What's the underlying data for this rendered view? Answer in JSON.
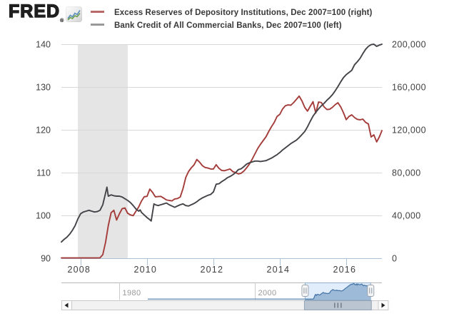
{
  "logo": {
    "text": "FRED",
    "registered": "®",
    "icon": "fred-sparkline-icon"
  },
  "legend": {
    "items": [
      {
        "label": "Excess Reserves of Depository Institutions, Dec 2007=100 (right)",
        "swatch_color": "#b96a66"
      },
      {
        "label": "Bank Credit of All Commercial Banks, Dec 2007=100 (left)",
        "swatch_color": "#999999"
      }
    ]
  },
  "chart_data": {
    "type": "line",
    "title": "",
    "grid": "horizontal",
    "legend_position": "top",
    "x_axis": {
      "range": [
        2007.42,
        2017.075
      ],
      "ticks": [
        2008,
        2010,
        2012,
        2014,
        2016
      ],
      "labels": [
        "2008",
        "2010",
        "2012",
        "2014",
        "2016"
      ],
      "line_color": "#a9c2d9"
    },
    "y_axis_left": {
      "range": [
        90,
        140
      ],
      "ticks": [
        90,
        100,
        110,
        120,
        130,
        140
      ],
      "labels": [
        "90",
        "100",
        "110",
        "120",
        "130",
        "140"
      ]
    },
    "y_axis_right": {
      "range": [
        0,
        200000
      ],
      "ticks": [
        0,
        40000,
        80000,
        120000,
        160000,
        200000
      ],
      "labels": [
        "0",
        "40,000",
        "80,000",
        "120,000",
        "160,000",
        "200,000"
      ]
    },
    "recession_band": {
      "from": 2007.917,
      "to": 2009.417,
      "color": "#e5e5e5"
    },
    "gridline_color": "#d8d8d8",
    "label_color": "#404040",
    "series": [
      {
        "name": "Excess Reserves of Depository Institutions, Dec 2007=100",
        "axis": "right",
        "color": "#a43c3a",
        "points": [
          [
            2007.42,
            300
          ],
          [
            2007.5,
            300
          ],
          [
            2007.583,
            300
          ],
          [
            2007.667,
            300
          ],
          [
            2007.75,
            300
          ],
          [
            2007.833,
            300
          ],
          [
            2007.917,
            300
          ],
          [
            2008.0,
            300
          ],
          [
            2008.083,
            300
          ],
          [
            2008.167,
            300
          ],
          [
            2008.25,
            300
          ],
          [
            2008.333,
            300
          ],
          [
            2008.417,
            300
          ],
          [
            2008.5,
            300
          ],
          [
            2008.583,
            400
          ],
          [
            2008.667,
            3300
          ],
          [
            2008.75,
            14800
          ],
          [
            2008.833,
            30500
          ],
          [
            2008.917,
            42500
          ],
          [
            2009.0,
            44800
          ],
          [
            2009.083,
            35700
          ],
          [
            2009.167,
            41500
          ],
          [
            2009.25,
            46300
          ],
          [
            2009.333,
            47000
          ],
          [
            2009.417,
            42000
          ],
          [
            2009.5,
            40500
          ],
          [
            2009.583,
            39800
          ],
          [
            2009.667,
            44000
          ],
          [
            2009.75,
            48000
          ],
          [
            2009.833,
            53500
          ],
          [
            2009.917,
            57500
          ],
          [
            2010.0,
            57800
          ],
          [
            2010.083,
            64600
          ],
          [
            2010.167,
            61500
          ],
          [
            2010.25,
            57400
          ],
          [
            2010.333,
            57600
          ],
          [
            2010.417,
            57800
          ],
          [
            2010.5,
            56200
          ],
          [
            2010.583,
            54500
          ],
          [
            2010.667,
            54000
          ],
          [
            2010.75,
            53600
          ],
          [
            2010.833,
            55400
          ],
          [
            2010.917,
            55800
          ],
          [
            2011.0,
            57200
          ],
          [
            2011.083,
            65000
          ],
          [
            2011.167,
            75500
          ],
          [
            2011.25,
            81000
          ],
          [
            2011.333,
            84500
          ],
          [
            2011.417,
            87300
          ],
          [
            2011.5,
            92300
          ],
          [
            2011.583,
            89800
          ],
          [
            2011.667,
            86500
          ],
          [
            2011.75,
            84800
          ],
          [
            2011.833,
            84300
          ],
          [
            2011.917,
            83400
          ],
          [
            2012.0,
            83400
          ],
          [
            2012.083,
            87400
          ],
          [
            2012.167,
            84000
          ],
          [
            2012.25,
            82000
          ],
          [
            2012.333,
            81800
          ],
          [
            2012.417,
            82600
          ],
          [
            2012.5,
            83400
          ],
          [
            2012.583,
            81000
          ],
          [
            2012.667,
            80000
          ],
          [
            2012.75,
            78800
          ],
          [
            2012.833,
            79400
          ],
          [
            2012.917,
            81500
          ],
          [
            2013.0,
            84500
          ],
          [
            2013.083,
            88000
          ],
          [
            2013.167,
            92500
          ],
          [
            2013.25,
            97500
          ],
          [
            2013.333,
            102500
          ],
          [
            2013.417,
            106500
          ],
          [
            2013.5,
            110000
          ],
          [
            2013.583,
            113500
          ],
          [
            2013.667,
            118500
          ],
          [
            2013.75,
            123000
          ],
          [
            2013.833,
            127000
          ],
          [
            2013.917,
            132500
          ],
          [
            2014.0,
            134500
          ],
          [
            2014.083,
            139500
          ],
          [
            2014.167,
            142500
          ],
          [
            2014.25,
            143300
          ],
          [
            2014.333,
            143000
          ],
          [
            2014.417,
            145500
          ],
          [
            2014.5,
            148500
          ],
          [
            2014.583,
            151500
          ],
          [
            2014.667,
            147000
          ],
          [
            2014.75,
            141000
          ],
          [
            2014.833,
            137500
          ],
          [
            2014.917,
            142000
          ],
          [
            2015.0,
            146300
          ],
          [
            2015.083,
            135700
          ],
          [
            2015.167,
            146000
          ],
          [
            2015.25,
            145500
          ],
          [
            2015.333,
            141500
          ],
          [
            2015.417,
            139000
          ],
          [
            2015.5,
            139200
          ],
          [
            2015.583,
            141000
          ],
          [
            2015.667,
            143500
          ],
          [
            2015.75,
            145300
          ],
          [
            2015.833,
            141500
          ],
          [
            2015.917,
            136000
          ],
          [
            2016.0,
            129500
          ],
          [
            2016.083,
            132500
          ],
          [
            2016.167,
            134000
          ],
          [
            2016.25,
            131500
          ],
          [
            2016.333,
            129800
          ],
          [
            2016.417,
            129400
          ],
          [
            2016.5,
            130000
          ],
          [
            2016.583,
            127000
          ],
          [
            2016.667,
            125500
          ],
          [
            2016.75,
            113300
          ],
          [
            2016.833,
            115300
          ],
          [
            2016.917,
            108700
          ],
          [
            2017.0,
            113500
          ],
          [
            2017.075,
            119300
          ]
        ]
      },
      {
        "name": "Bank Credit of All Commercial Banks, Dec 2007=100",
        "axis": "left",
        "color": "#434348",
        "points": [
          [
            2007.42,
            93.8
          ],
          [
            2007.5,
            94.4
          ],
          [
            2007.583,
            94.9
          ],
          [
            2007.667,
            95.6
          ],
          [
            2007.75,
            96.5
          ],
          [
            2007.833,
            97.6
          ],
          [
            2007.917,
            99.2
          ],
          [
            2008.0,
            100.4
          ],
          [
            2008.083,
            100.8
          ],
          [
            2008.167,
            101.0
          ],
          [
            2008.25,
            101.2
          ],
          [
            2008.333,
            101.0
          ],
          [
            2008.417,
            100.8
          ],
          [
            2008.5,
            100.9
          ],
          [
            2008.583,
            101.2
          ],
          [
            2008.667,
            102.5
          ],
          [
            2008.75,
            105.2
          ],
          [
            2008.792,
            106.6
          ],
          [
            2008.833,
            104.5
          ],
          [
            2008.917,
            104.8
          ],
          [
            2009.0,
            104.6
          ],
          [
            2009.083,
            104.5
          ],
          [
            2009.167,
            104.5
          ],
          [
            2009.25,
            104.3
          ],
          [
            2009.333,
            103.9
          ],
          [
            2009.417,
            103.5
          ],
          [
            2009.5,
            103.0
          ],
          [
            2009.583,
            102.3
          ],
          [
            2009.667,
            101.5
          ],
          [
            2009.75,
            101.0
          ],
          [
            2009.792,
            101.3
          ],
          [
            2009.833,
            100.7
          ],
          [
            2009.917,
            100.1
          ],
          [
            2010.0,
            99.5
          ],
          [
            2010.083,
            99.0
          ],
          [
            2010.125,
            98.7
          ],
          [
            2010.208,
            102.7
          ],
          [
            2010.25,
            102.5
          ],
          [
            2010.333,
            102.3
          ],
          [
            2010.417,
            102.5
          ],
          [
            2010.5,
            102.7
          ],
          [
            2010.583,
            102.9
          ],
          [
            2010.667,
            102.5
          ],
          [
            2010.75,
            102.2
          ],
          [
            2010.833,
            101.9
          ],
          [
            2010.917,
            102.2
          ],
          [
            2011.0,
            102.5
          ],
          [
            2011.083,
            102.7
          ],
          [
            2011.167,
            102.3
          ],
          [
            2011.25,
            102.2
          ],
          [
            2011.333,
            102.5
          ],
          [
            2011.417,
            102.8
          ],
          [
            2011.5,
            103.2
          ],
          [
            2011.583,
            103.7
          ],
          [
            2011.667,
            104.1
          ],
          [
            2011.75,
            104.4
          ],
          [
            2011.833,
            104.7
          ],
          [
            2011.917,
            104.9
          ],
          [
            2012.0,
            105.5
          ],
          [
            2012.083,
            107.3
          ],
          [
            2012.167,
            107.4
          ],
          [
            2012.25,
            107.9
          ],
          [
            2012.333,
            108.3
          ],
          [
            2012.417,
            108.8
          ],
          [
            2012.5,
            109.1
          ],
          [
            2012.583,
            109.5
          ],
          [
            2012.667,
            110.0
          ],
          [
            2012.75,
            110.7
          ],
          [
            2012.833,
            110.9
          ],
          [
            2012.917,
            111.4
          ],
          [
            2013.0,
            112.0
          ],
          [
            2013.083,
            112.3
          ],
          [
            2013.167,
            112.5
          ],
          [
            2013.25,
            112.7
          ],
          [
            2013.333,
            112.7
          ],
          [
            2013.417,
            112.6
          ],
          [
            2013.5,
            112.7
          ],
          [
            2013.583,
            112.8
          ],
          [
            2013.667,
            113.1
          ],
          [
            2013.75,
            113.4
          ],
          [
            2013.833,
            113.8
          ],
          [
            2013.917,
            114.2
          ],
          [
            2014.0,
            114.7
          ],
          [
            2014.083,
            115.3
          ],
          [
            2014.167,
            115.8
          ],
          [
            2014.25,
            116.3
          ],
          [
            2014.333,
            116.8
          ],
          [
            2014.417,
            117.2
          ],
          [
            2014.5,
            117.6
          ],
          [
            2014.583,
            118.2
          ],
          [
            2014.667,
            118.9
          ],
          [
            2014.75,
            119.6
          ],
          [
            2014.833,
            120.7
          ],
          [
            2014.917,
            122.0
          ],
          [
            2015.0,
            123.2
          ],
          [
            2015.083,
            124.1
          ],
          [
            2015.167,
            124.9
          ],
          [
            2015.25,
            125.6
          ],
          [
            2015.333,
            126.2
          ],
          [
            2015.417,
            126.9
          ],
          [
            2015.5,
            127.5
          ],
          [
            2015.583,
            128.2
          ],
          [
            2015.667,
            129.1
          ],
          [
            2015.75,
            130.1
          ],
          [
            2015.833,
            131.2
          ],
          [
            2015.917,
            132.2
          ],
          [
            2016.0,
            132.9
          ],
          [
            2016.083,
            133.4
          ],
          [
            2016.167,
            133.9
          ],
          [
            2016.25,
            135.2
          ],
          [
            2016.333,
            135.9
          ],
          [
            2016.417,
            136.7
          ],
          [
            2016.5,
            137.8
          ],
          [
            2016.583,
            138.8
          ],
          [
            2016.667,
            139.5
          ],
          [
            2016.75,
            139.9
          ],
          [
            2016.833,
            140.0
          ],
          [
            2016.917,
            139.5
          ],
          [
            2017.0,
            139.8
          ],
          [
            2017.075,
            140.0
          ]
        ]
      }
    ]
  },
  "navigator": {
    "axis_range": [
      1971.53,
      2018.73
    ],
    "labels": [
      {
        "text": "1980",
        "year": 1980
      },
      {
        "text": "2000",
        "year": 2000
      }
    ],
    "label_color": "#999999",
    "selection": {
      "from": 2007.42,
      "to": 2017.075
    },
    "series_start_year": 1984.25,
    "series_base_value": 100,
    "series_ref": 0,
    "y_max": 152000,
    "window_fill": "#e1edfb",
    "window_border": "#93afc9",
    "area_fill": "#9dbbd9",
    "area_line": "#4a78a8",
    "baseline_color": "#5c87b5",
    "gridline_color": "#cccccc"
  },
  "scrollbar": {
    "left_arrow_icon": "left-triangle",
    "right_arrow_icon": "right-triangle",
    "grip_icon": "triple-bar",
    "track_color": "#f2f2f2",
    "border_color": "#c9c9c9",
    "thumb_color": "#bac5d1",
    "thumb_border": "#94a4b4"
  }
}
